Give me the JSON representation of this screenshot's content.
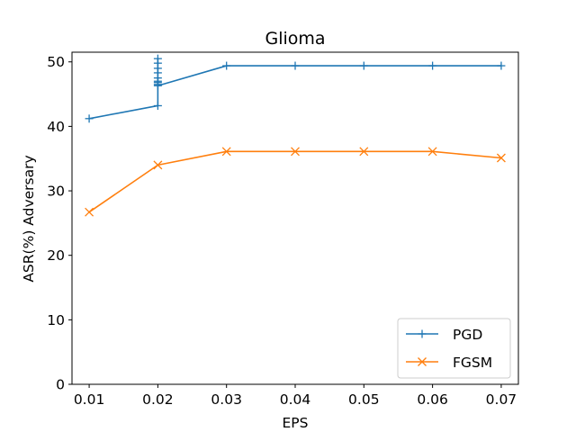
{
  "chart_data": {
    "type": "line",
    "title": "Glioma",
    "xlabel": "EPS",
    "ylabel": "ASR(%) Adversary",
    "xlim": [
      0.0075,
      0.0725
    ],
    "ylim": [
      0,
      51.5
    ],
    "xticks": [
      0.01,
      0.02,
      0.03,
      0.04,
      0.05,
      0.06,
      0.07
    ],
    "xtick_labels": [
      "0.01",
      "0.02",
      "0.03",
      "0.04",
      "0.05",
      "0.06",
      "0.07"
    ],
    "yticks": [
      0,
      10,
      20,
      30,
      40,
      50
    ],
    "ytick_labels": [
      "0",
      "10",
      "20",
      "30",
      "40",
      "50"
    ],
    "grid": false,
    "legend_position": "bottom-right",
    "series": [
      {
        "name": "PGD",
        "color": "#1f77b4",
        "marker": "plus",
        "x": [
          0.01,
          0.02,
          0.02,
          0.02,
          0.02,
          0.02,
          0.02,
          0.02,
          0.02,
          0.02,
          0.02,
          0.03,
          0.04,
          0.05,
          0.06,
          0.07
        ],
        "y": [
          41.2,
          43.2,
          50.5,
          49.8,
          49.0,
          48.3,
          47.5,
          47.0,
          46.8,
          46.5,
          46.3,
          49.4,
          49.4,
          49.4,
          49.4,
          49.4
        ]
      },
      {
        "name": "FGSM",
        "color": "#ff7f0e",
        "marker": "x",
        "x": [
          0.01,
          0.02,
          0.03,
          0.04,
          0.05,
          0.06,
          0.07
        ],
        "y": [
          26.7,
          34.0,
          36.1,
          36.1,
          36.1,
          36.1,
          35.1
        ]
      }
    ]
  }
}
